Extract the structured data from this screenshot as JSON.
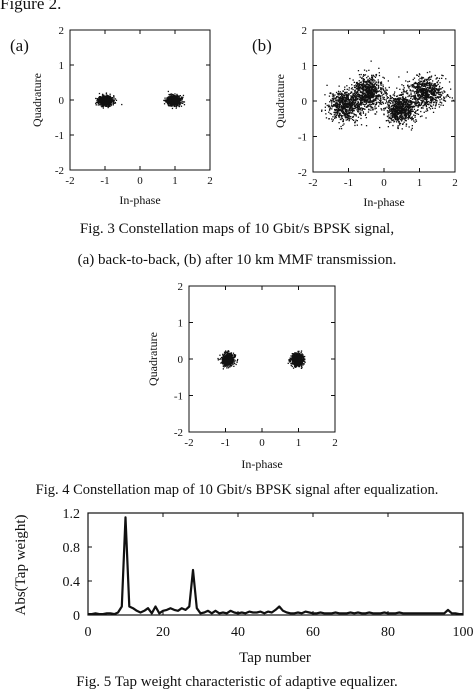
{
  "page_header": "Figure 2.",
  "captions": {
    "fig3_line1": "Fig. 3 Constellation maps of 10 Gbit/s BPSK signal,",
    "fig3_line2": "(a) back-to-back, (b) after 10 km MMF transmission.",
    "fig4": "Fig. 4 Constellation map of 10 Gbit/s BPSK signal after equalization.",
    "fig5": "Fig. 5 Tap weight characteristic of adaptive equalizer."
  },
  "chart_data": [
    {
      "type": "scatter",
      "panel_label": "(a)",
      "xlabel": "In-phase",
      "ylabel": "Quadrature",
      "xlim": [
        -2,
        2
      ],
      "ylim": [
        -2,
        2
      ],
      "xticks": [
        "-2",
        "-1",
        "0",
        "1",
        "2"
      ],
      "yticks": [
        "-2",
        "-1",
        "0",
        "1",
        "2"
      ],
      "clusters": [
        {
          "center": [
            -1.0,
            0.0
          ],
          "spread": [
            0.1,
            0.07
          ]
        },
        {
          "center": [
            0.95,
            0.0
          ],
          "spread": [
            0.1,
            0.07
          ]
        }
      ]
    },
    {
      "type": "scatter",
      "panel_label": "(b)",
      "xlabel": "In-phase",
      "ylabel": "Quadrature",
      "xlim": [
        -2,
        2
      ],
      "ylim": [
        -2,
        2
      ],
      "xticks": [
        "-2",
        "-1",
        "0",
        "1",
        "2"
      ],
      "yticks": [
        "-2",
        "-1",
        "0",
        "1",
        "2"
      ],
      "clusters": [
        {
          "center": [
            -1.1,
            -0.1
          ],
          "spread": [
            0.25,
            0.22
          ]
        },
        {
          "center": [
            -0.45,
            0.25
          ],
          "spread": [
            0.22,
            0.22
          ]
        },
        {
          "center": [
            0.45,
            -0.2
          ],
          "spread": [
            0.22,
            0.22
          ]
        },
        {
          "center": [
            1.15,
            0.25
          ],
          "spread": [
            0.25,
            0.22
          ]
        }
      ]
    },
    {
      "type": "scatter",
      "xlabel": "In-phase",
      "ylabel": "Quadrature",
      "xlim": [
        -2,
        2
      ],
      "ylim": [
        -2,
        2
      ],
      "xticks": [
        "-2",
        "-1",
        "0",
        "1",
        "2"
      ],
      "yticks": [
        "-2",
        "-1",
        "0",
        "1",
        "2"
      ],
      "clusters": [
        {
          "center": [
            -0.95,
            0.0
          ],
          "spread": [
            0.08,
            0.08
          ]
        },
        {
          "center": [
            0.95,
            0.0
          ],
          "spread": [
            0.08,
            0.08
          ]
        }
      ]
    },
    {
      "type": "line",
      "xlabel": "Tap number",
      "ylabel": "Abs(Tap weight)",
      "xlim": [
        0,
        100
      ],
      "ylim": [
        0,
        1.2
      ],
      "xticks": [
        "0",
        "20",
        "40",
        "60",
        "80",
        "100"
      ],
      "yticks": [
        "0",
        "0.4",
        "0.8",
        "1.2"
      ],
      "x": [
        0,
        1,
        2,
        3,
        4,
        5,
        6,
        7,
        8,
        9,
        10,
        11,
        12,
        13,
        14,
        15,
        16,
        17,
        18,
        19,
        20,
        21,
        22,
        23,
        24,
        25,
        26,
        27,
        28,
        29,
        30,
        31,
        32,
        33,
        34,
        35,
        36,
        37,
        38,
        39,
        40,
        41,
        42,
        43,
        44,
        45,
        46,
        47,
        48,
        49,
        50,
        51,
        52,
        53,
        54,
        55,
        56,
        57,
        58,
        59,
        60,
        61,
        62,
        63,
        64,
        65,
        66,
        67,
        68,
        69,
        70,
        71,
        72,
        73,
        74,
        75,
        76,
        77,
        78,
        79,
        80,
        81,
        82,
        83,
        84,
        85,
        86,
        87,
        88,
        89,
        90,
        91,
        92,
        93,
        94,
        95,
        96,
        97,
        98,
        99,
        100
      ],
      "y": [
        0.01,
        0.01,
        0.02,
        0.01,
        0.01,
        0.02,
        0.02,
        0.01,
        0.03,
        0.1,
        1.15,
        0.1,
        0.08,
        0.05,
        0.03,
        0.05,
        0.08,
        0.02,
        0.1,
        0.02,
        0.05,
        0.06,
        0.08,
        0.06,
        0.05,
        0.08,
        0.06,
        0.1,
        0.53,
        0.08,
        0.02,
        0.03,
        0.05,
        0.02,
        0.05,
        0.02,
        0.03,
        0.02,
        0.05,
        0.03,
        0.02,
        0.03,
        0.02,
        0.04,
        0.03,
        0.03,
        0.04,
        0.02,
        0.04,
        0.03,
        0.06,
        0.1,
        0.05,
        0.03,
        0.02,
        0.02,
        0.03,
        0.02,
        0.04,
        0.03,
        0.02,
        0.02,
        0.03,
        0.02,
        0.02,
        0.02,
        0.03,
        0.02,
        0.02,
        0.02,
        0.03,
        0.02,
        0.03,
        0.02,
        0.02,
        0.03,
        0.02,
        0.02,
        0.02,
        0.03,
        0.02,
        0.02,
        0.02,
        0.03,
        0.02,
        0.02,
        0.02,
        0.02,
        0.02,
        0.02,
        0.02,
        0.02,
        0.02,
        0.02,
        0.02,
        0.02,
        0.06,
        0.02,
        0.02,
        0.01,
        0.01
      ]
    }
  ]
}
